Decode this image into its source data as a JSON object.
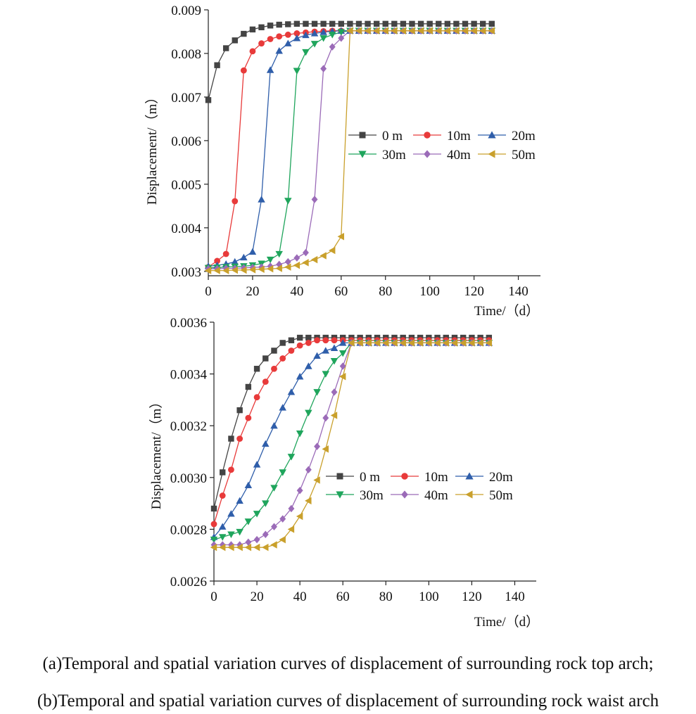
{
  "chart_data": [
    {
      "type": "line",
      "panel": "a",
      "xlabel": "Time/（d）",
      "ylabel": "Displacement/（m）",
      "xlim": [
        0,
        150
      ],
      "ylim": [
        0.0029,
        0.009
      ],
      "xticks": [
        0,
        20,
        40,
        60,
        80,
        100,
        120,
        140
      ],
      "yticks": [
        0.003,
        0.004,
        0.005,
        0.006,
        0.007,
        0.008,
        0.009
      ],
      "ytick_labels": [
        "0.003",
        "0.004",
        "0.005",
        "0.006",
        "0.007",
        "0.008",
        "0.009"
      ],
      "legend_position": "center-right",
      "series": [
        {
          "name": "0 m",
          "color": "#444444",
          "marker": "square",
          "x": [
            0,
            4,
            8,
            12,
            16,
            20,
            24,
            28,
            32,
            36,
            40,
            44,
            48,
            52,
            56,
            60,
            64,
            68,
            72,
            76,
            80,
            84,
            88,
            92,
            96,
            100,
            104,
            108,
            112,
            116,
            120,
            124,
            128
          ],
          "y": [
            0.00693,
            0.00773,
            0.00812,
            0.0083,
            0.00845,
            0.00855,
            0.0086,
            0.00864,
            0.00866,
            0.00867,
            0.00868,
            0.00868,
            0.00868,
            0.00868,
            0.00868,
            0.00868,
            0.00868,
            0.00868,
            0.00868,
            0.00868,
            0.00868,
            0.00868,
            0.00868,
            0.00868,
            0.00868,
            0.00868,
            0.00868,
            0.00868,
            0.00868,
            0.00868,
            0.00868,
            0.00868,
            0.00868
          ]
        },
        {
          "name": "10m",
          "color": "#e83a3a",
          "marker": "circle",
          "x": [
            0,
            4,
            8,
            12,
            16,
            20,
            24,
            28,
            32,
            36,
            40,
            44,
            48,
            52,
            56,
            60,
            64,
            68,
            72,
            76,
            80,
            84,
            88,
            92,
            96,
            100,
            104,
            108,
            112,
            116,
            120,
            124,
            128
          ],
          "y": [
            0.0031,
            0.00324,
            0.0034,
            0.00461,
            0.00761,
            0.00805,
            0.00823,
            0.00833,
            0.00839,
            0.00843,
            0.00846,
            0.00848,
            0.0085,
            0.00851,
            0.00852,
            0.00852,
            0.00852,
            0.00852,
            0.00852,
            0.00852,
            0.00852,
            0.00852,
            0.00852,
            0.00852,
            0.00852,
            0.00852,
            0.00852,
            0.00852,
            0.00852,
            0.00852,
            0.00852,
            0.00852,
            0.00852
          ]
        },
        {
          "name": "20m",
          "color": "#2f5eaa",
          "marker": "triangle-up",
          "x": [
            0,
            4,
            8,
            12,
            16,
            20,
            24,
            28,
            32,
            36,
            40,
            44,
            48,
            52,
            56,
            60,
            64,
            68,
            72,
            76,
            80,
            84,
            88,
            92,
            96,
            100,
            104,
            108,
            112,
            116,
            120,
            124,
            128
          ],
          "y": [
            0.00312,
            0.00314,
            0.00317,
            0.00322,
            0.00332,
            0.00345,
            0.00465,
            0.00762,
            0.00806,
            0.00823,
            0.00835,
            0.00842,
            0.00846,
            0.00849,
            0.00851,
            0.00852,
            0.00852,
            0.00852,
            0.00852,
            0.00852,
            0.00852,
            0.00852,
            0.00852,
            0.00852,
            0.00852,
            0.00852,
            0.00852,
            0.00852,
            0.00852,
            0.00852,
            0.00852,
            0.00852,
            0.00852
          ]
        },
        {
          "name": "30m",
          "color": "#1fa55c",
          "marker": "triangle-down",
          "x": [
            0,
            4,
            8,
            12,
            16,
            20,
            24,
            28,
            32,
            36,
            40,
            44,
            48,
            52,
            56,
            60,
            64,
            68,
            72,
            76,
            80,
            84,
            88,
            92,
            96,
            100,
            104,
            108,
            112,
            116,
            120,
            124,
            128
          ],
          "y": [
            0.00308,
            0.00309,
            0.0031,
            0.00311,
            0.00312,
            0.00314,
            0.00318,
            0.00327,
            0.0034,
            0.00462,
            0.0076,
            0.00803,
            0.00822,
            0.00835,
            0.00843,
            0.00849,
            0.00852,
            0.00852,
            0.00852,
            0.00852,
            0.00852,
            0.00852,
            0.00852,
            0.00852,
            0.00852,
            0.00852,
            0.00852,
            0.00852,
            0.00852,
            0.00852,
            0.00852,
            0.00852,
            0.00852
          ]
        },
        {
          "name": "40m",
          "color": "#9b6bb8",
          "marker": "diamond",
          "x": [
            0,
            4,
            8,
            12,
            16,
            20,
            24,
            28,
            32,
            36,
            40,
            44,
            48,
            52,
            56,
            60,
            64,
            68,
            72,
            76,
            80,
            84,
            88,
            92,
            96,
            100,
            104,
            108,
            112,
            116,
            120,
            124,
            128
          ],
          "y": [
            0.00306,
            0.00306,
            0.00307,
            0.00307,
            0.00308,
            0.00309,
            0.0031,
            0.00312,
            0.00316,
            0.00322,
            0.00331,
            0.00343,
            0.00465,
            0.00765,
            0.00815,
            0.00835,
            0.00852,
            0.00852,
            0.00852,
            0.00852,
            0.00852,
            0.00852,
            0.00852,
            0.00852,
            0.00852,
            0.00852,
            0.00852,
            0.00852,
            0.00852,
            0.00852,
            0.00852,
            0.00852,
            0.00852
          ]
        },
        {
          "name": "50m",
          "color": "#c9a02c",
          "marker": "triangle-left",
          "x": [
            0,
            4,
            8,
            12,
            16,
            20,
            24,
            28,
            32,
            36,
            40,
            44,
            48,
            52,
            56,
            60,
            64,
            68,
            72,
            76,
            80,
            84,
            88,
            92,
            96,
            100,
            104,
            108,
            112,
            116,
            120,
            124,
            128
          ],
          "y": [
            0.00302,
            0.00302,
            0.00302,
            0.00303,
            0.00303,
            0.00304,
            0.00305,
            0.00306,
            0.00307,
            0.0031,
            0.00314,
            0.0032,
            0.00327,
            0.00336,
            0.00348,
            0.0038,
            0.00852,
            0.00852,
            0.00852,
            0.00852,
            0.00852,
            0.00852,
            0.00852,
            0.00852,
            0.00852,
            0.00852,
            0.00852,
            0.00852,
            0.00852,
            0.00852,
            0.00852,
            0.00852,
            0.00852
          ]
        }
      ]
    },
    {
      "type": "line",
      "panel": "b",
      "xlabel": "Time/（d）",
      "ylabel": "Displacement/（m）",
      "xlim": [
        0,
        150
      ],
      "ylim": [
        0.0026,
        0.0036
      ],
      "xticks": [
        0,
        20,
        40,
        60,
        80,
        100,
        120,
        140
      ],
      "yticks": [
        0.0026,
        0.0028,
        0.003,
        0.0032,
        0.0034,
        0.0036
      ],
      "ytick_labels": [
        "0.0026",
        "0.0028",
        "0.0030",
        "0.0032",
        "0.0034",
        "0.0036"
      ],
      "legend_position": "center-right",
      "series": [
        {
          "name": "0 m",
          "color": "#444444",
          "marker": "square",
          "x": [
            0,
            4,
            8,
            12,
            16,
            20,
            24,
            28,
            32,
            36,
            40,
            44,
            48,
            52,
            56,
            60,
            64,
            68,
            72,
            76,
            80,
            84,
            88,
            92,
            96,
            100,
            104,
            108,
            112,
            116,
            120,
            124,
            128
          ],
          "y": [
            0.00288,
            0.00302,
            0.00315,
            0.00326,
            0.00335,
            0.00342,
            0.00346,
            0.00349,
            0.00352,
            0.00353,
            0.00354,
            0.00354,
            0.00354,
            0.00354,
            0.00354,
            0.00354,
            0.00354,
            0.00354,
            0.00354,
            0.00354,
            0.00354,
            0.00354,
            0.00354,
            0.00354,
            0.00354,
            0.00354,
            0.00354,
            0.00354,
            0.00354,
            0.00354,
            0.00354,
            0.00354,
            0.00354
          ]
        },
        {
          "name": "10m",
          "color": "#e83a3a",
          "marker": "circle",
          "x": [
            0,
            4,
            8,
            12,
            16,
            20,
            24,
            28,
            32,
            36,
            40,
            44,
            48,
            52,
            56,
            60,
            64,
            68,
            72,
            76,
            80,
            84,
            88,
            92,
            96,
            100,
            104,
            108,
            112,
            116,
            120,
            124,
            128
          ],
          "y": [
            0.00282,
            0.00293,
            0.00303,
            0.00315,
            0.00323,
            0.00331,
            0.00337,
            0.00342,
            0.00346,
            0.00349,
            0.00351,
            0.00352,
            0.00353,
            0.00353,
            0.00353,
            0.00353,
            0.00353,
            0.00353,
            0.00353,
            0.00353,
            0.00353,
            0.00353,
            0.00353,
            0.00353,
            0.00353,
            0.00353,
            0.00353,
            0.00353,
            0.00353,
            0.00353,
            0.00353,
            0.00353,
            0.00353
          ]
        },
        {
          "name": "20m",
          "color": "#2f5eaa",
          "marker": "triangle-up",
          "x": [
            0,
            4,
            8,
            12,
            16,
            20,
            24,
            28,
            32,
            36,
            40,
            44,
            48,
            52,
            56,
            60,
            64,
            68,
            72,
            76,
            80,
            84,
            88,
            92,
            96,
            100,
            104,
            108,
            112,
            116,
            120,
            124,
            128
          ],
          "y": [
            0.00277,
            0.00281,
            0.00286,
            0.00291,
            0.00297,
            0.00305,
            0.00313,
            0.0032,
            0.00327,
            0.00333,
            0.00339,
            0.00343,
            0.00347,
            0.00349,
            0.0035,
            0.00352,
            0.00352,
            0.00352,
            0.00352,
            0.00352,
            0.00352,
            0.00352,
            0.00352,
            0.00352,
            0.00352,
            0.00352,
            0.00352,
            0.00352,
            0.00352,
            0.00352,
            0.00352,
            0.00352,
            0.00352
          ]
        },
        {
          "name": "30m",
          "color": "#1fa55c",
          "marker": "triangle-down",
          "x": [
            0,
            4,
            8,
            12,
            16,
            20,
            24,
            28,
            32,
            36,
            40,
            44,
            48,
            52,
            56,
            60,
            64,
            68,
            72,
            76,
            80,
            84,
            88,
            92,
            96,
            100,
            104,
            108,
            112,
            116,
            120,
            124,
            128
          ],
          "y": [
            0.00276,
            0.00277,
            0.00278,
            0.00279,
            0.00283,
            0.00286,
            0.0029,
            0.00296,
            0.00302,
            0.00308,
            0.00317,
            0.00325,
            0.00333,
            0.0034,
            0.00345,
            0.00348,
            0.00352,
            0.00352,
            0.00352,
            0.00352,
            0.00352,
            0.00352,
            0.00352,
            0.00352,
            0.00352,
            0.00352,
            0.00352,
            0.00352,
            0.00352,
            0.00352,
            0.00352,
            0.00352,
            0.00352
          ]
        },
        {
          "name": "40m",
          "color": "#9b6bb8",
          "marker": "diamond",
          "x": [
            0,
            4,
            8,
            12,
            16,
            20,
            24,
            28,
            32,
            36,
            40,
            44,
            48,
            52,
            56,
            60,
            64,
            68,
            72,
            76,
            80,
            84,
            88,
            92,
            96,
            100,
            104,
            108,
            112,
            116,
            120,
            124,
            128
          ],
          "y": [
            0.00274,
            0.00274,
            0.00274,
            0.00274,
            0.00275,
            0.00276,
            0.00278,
            0.00281,
            0.00284,
            0.00288,
            0.00295,
            0.00303,
            0.00312,
            0.00323,
            0.00333,
            0.00343,
            0.00352,
            0.00352,
            0.00352,
            0.00352,
            0.00352,
            0.00352,
            0.00352,
            0.00352,
            0.00352,
            0.00352,
            0.00352,
            0.00352,
            0.00352,
            0.00352,
            0.00352,
            0.00352,
            0.00352
          ]
        },
        {
          "name": "50m",
          "color": "#c9a02c",
          "marker": "triangle-left",
          "x": [
            0,
            4,
            8,
            12,
            16,
            20,
            24,
            28,
            32,
            36,
            40,
            44,
            48,
            52,
            56,
            60,
            64,
            68,
            72,
            76,
            80,
            84,
            88,
            92,
            96,
            100,
            104,
            108,
            112,
            116,
            120,
            124,
            128
          ],
          "y": [
            0.00273,
            0.00273,
            0.00273,
            0.00273,
            0.00273,
            0.00273,
            0.00273,
            0.00274,
            0.00276,
            0.0028,
            0.00285,
            0.00291,
            0.00299,
            0.00311,
            0.00324,
            0.00339,
            0.00352,
            0.00352,
            0.00352,
            0.00352,
            0.00352,
            0.00352,
            0.00352,
            0.00352,
            0.00352,
            0.00352,
            0.00352,
            0.00352,
            0.00352,
            0.00352,
            0.00352,
            0.00352,
            0.00352
          ]
        }
      ]
    }
  ],
  "captions": {
    "a": "(a)Temporal and spatial variation curves of displacement of surrounding rock top arch;",
    "b": "(b)Temporal and spatial variation curves of displacement of surrounding rock waist arch"
  }
}
